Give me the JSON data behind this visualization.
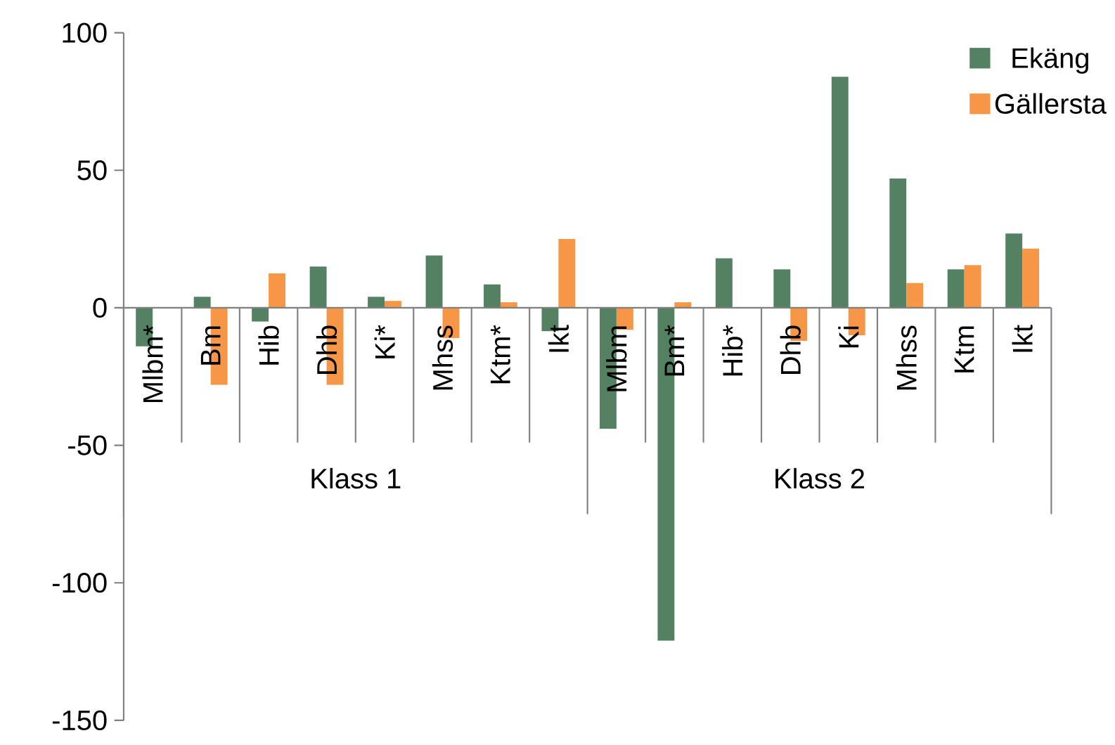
{
  "chart_data": {
    "type": "bar",
    "categories": [
      "Mlbm*",
      "Bm",
      "Hib",
      "Dhb",
      "Ki*",
      "Mhss",
      "Ktm*",
      "Ikt",
      "Mlbm",
      "Bm*",
      "Hib*",
      "Dhb",
      "Ki",
      "Mhss",
      "Ktm",
      "Ikt"
    ],
    "series": [
      {
        "name": "Ekäng",
        "color": "#538162",
        "values": [
          -14,
          4,
          -5,
          15,
          4,
          19,
          8.5,
          -8.5,
          -44,
          -121,
          18,
          14,
          84,
          47,
          14,
          27
        ]
      },
      {
        "name": "Gällersta",
        "color": "#f79646",
        "values": [
          0,
          -28,
          12.5,
          -28,
          2.5,
          -11,
          2,
          25,
          -8,
          2,
          0,
          -12,
          -10,
          9,
          15.5,
          21.5
        ]
      }
    ],
    "ylim": [
      -150,
      100
    ],
    "yticks": [
      -150,
      -100,
      -50,
      0,
      50,
      100
    ],
    "legend": "top right",
    "annotations": [
      "Klass 1",
      "Klass 2"
    ]
  }
}
